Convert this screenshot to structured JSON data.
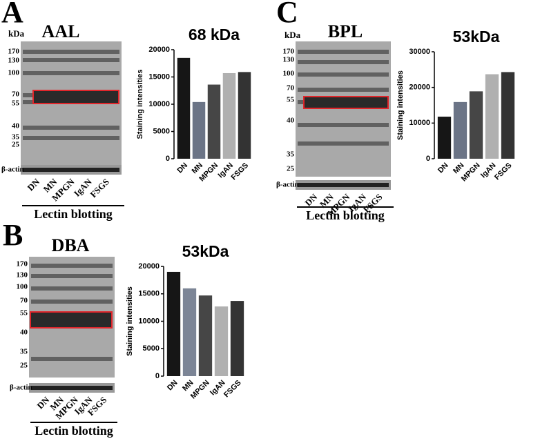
{
  "chart_data": [
    {
      "type": "bar",
      "title": "68 kDa",
      "ylabel": "Staining intensities",
      "categories": [
        "DN",
        "MN",
        "MPGN",
        "IgAN",
        "FSGS"
      ],
      "values": [
        18500,
        10400,
        13600,
        15700,
        15900
      ],
      "colors": [
        "#161616",
        "#6b7486",
        "#464646",
        "#b0b0b0",
        "#333333"
      ],
      "ylim": [
        0,
        20000
      ],
      "yticks": [
        0,
        5000,
        10000,
        15000,
        20000
      ]
    },
    {
      "type": "bar",
      "title": "53kDa",
      "ylabel": "Staining intensities",
      "categories": [
        "DN",
        "MN",
        "MPGN",
        "IgAN",
        "FSGS"
      ],
      "values": [
        11800,
        15900,
        18900,
        23700,
        24300
      ],
      "colors": [
        "#161616",
        "#6b7486",
        "#464646",
        "#b0b0b0",
        "#333333"
      ],
      "ylim": [
        0,
        30000
      ],
      "yticks": [
        0,
        10000,
        20000,
        30000
      ]
    },
    {
      "type": "bar",
      "title": "53kDa",
      "ylabel": "Staining intensities",
      "categories": [
        "DN",
        "MN",
        "MPGN",
        "IgAN",
        "FSGS"
      ],
      "values": [
        19000,
        16000,
        14700,
        12700,
        13700
      ],
      "colors": [
        "#161616",
        "#7c8596",
        "#464646",
        "#b0b0b0",
        "#333333"
      ],
      "ylim": [
        0,
        20000
      ],
      "yticks": [
        0,
        5000,
        10000,
        15000,
        20000
      ]
    }
  ],
  "blots": [
    {
      "letter": "A",
      "kda": "kDa",
      "lectin": "AAL",
      "markers": [
        "170",
        "130",
        "100",
        "70",
        "55",
        "40",
        "35",
        "25"
      ],
      "loading": "β-actin",
      "lanes": [
        "DN",
        "MN",
        "MPGN",
        "IgAN",
        "FSGS"
      ],
      "caption": "Lectin blotting"
    },
    {
      "letter": "C",
      "kda": "kDa",
      "lectin": "BPL",
      "markers": [
        "170",
        "130",
        "100",
        "70",
        "55",
        "40",
        "35",
        "25"
      ],
      "loading": "β-actin",
      "lanes": [
        "DN",
        "MN",
        "MPGN",
        "IgAN",
        "FSGS"
      ],
      "caption": "Lectin blotting"
    },
    {
      "letter": "B",
      "lectin": "DBA",
      "markers": [
        "170",
        "130",
        "100",
        "70",
        "55",
        "40",
        "35",
        "25"
      ],
      "loading": "β-actin",
      "lanes": [
        "DN",
        "MN",
        "MPGN",
        "IgAN",
        "FSGS"
      ],
      "caption": "Lectin blotting"
    }
  ]
}
